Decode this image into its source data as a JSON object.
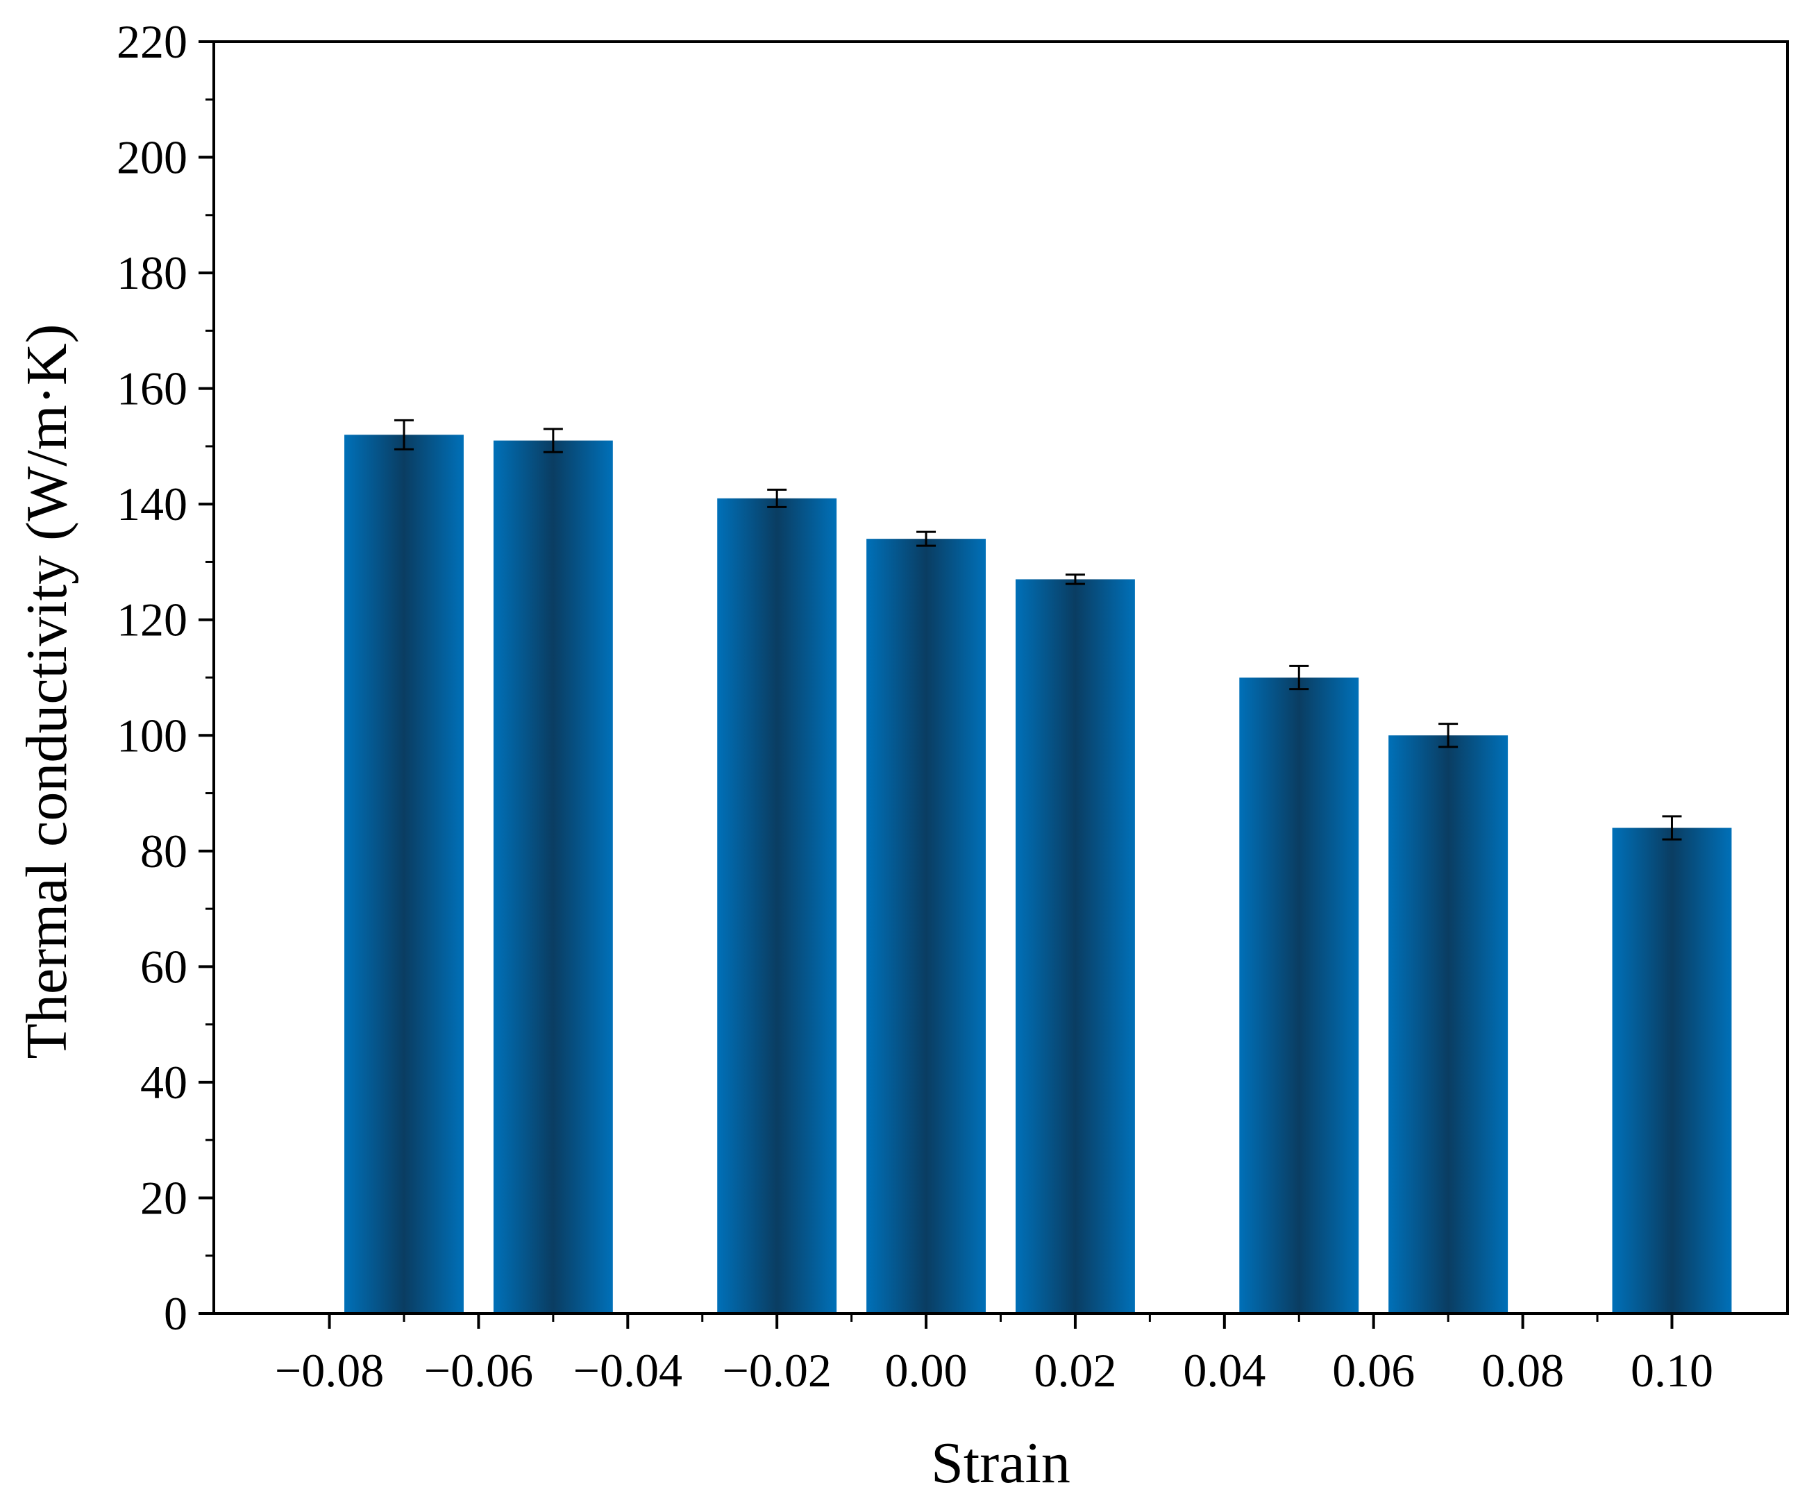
{
  "chart_data": {
    "type": "bar",
    "xlabel": "Strain",
    "ylabel": "Thermal conductivity (W/m·K)",
    "xlim": [
      -0.08,
      0.1
    ],
    "ylim": [
      0,
      220
    ],
    "grid": false,
    "legend": "none",
    "x_ticks": [
      -0.08,
      -0.06,
      -0.04,
      -0.02,
      0.0,
      0.02,
      0.04,
      0.06,
      0.08,
      0.1
    ],
    "x_tick_labels": [
      "−0.08",
      "−0.06",
      "−0.04",
      "−0.02",
      "0.00",
      "0.02",
      "0.04",
      "0.06",
      "0.08",
      "0.10"
    ],
    "y_ticks": [
      0,
      20,
      40,
      60,
      80,
      100,
      120,
      140,
      160,
      180,
      200,
      220
    ],
    "y_tick_labels": [
      "0",
      "20",
      "40",
      "60",
      "80",
      "100",
      "120",
      "140",
      "160",
      "180",
      "200",
      "220"
    ],
    "bar_width": 0.016,
    "bar_color": "#0070b8",
    "bar_shade_color": "#0a3d62",
    "series": [
      {
        "x": [
          -0.07,
          -0.05,
          -0.02,
          0.0,
          0.02,
          0.05,
          0.07,
          0.1
        ],
        "values": [
          152,
          151,
          141,
          134,
          127,
          110,
          100,
          84
        ],
        "errors": [
          2.5,
          2.0,
          1.5,
          1.2,
          0.8,
          2.0,
          2.0,
          2.0
        ]
      }
    ]
  }
}
